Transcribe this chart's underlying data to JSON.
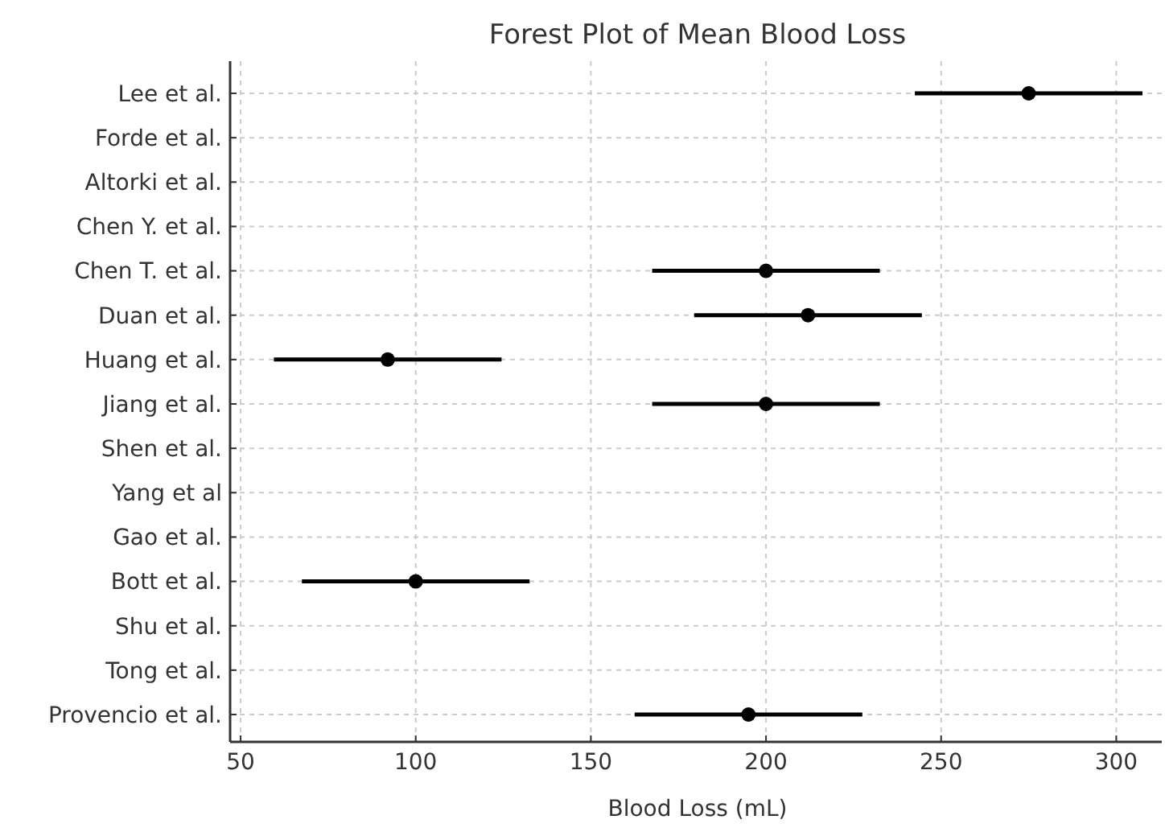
{
  "chart_data": {
    "type": "scatter",
    "orientation": "horizontal",
    "title": "Forest Plot of Mean Blood Loss",
    "xlabel": "Blood Loss (mL)",
    "categories": [
      "Lee et al.",
      "Forde et al.",
      "Altorki et al.",
      "Chen Y. et al.",
      "Chen T. et al.",
      "Duan et al.",
      "Huang et al.",
      "Jiang et al.",
      "Shen et al.",
      "Yang et al",
      "Gao et al.",
      "Bott et al.",
      "Shu et al.",
      "Tong et al.",
      "Provencio et al."
    ],
    "series": [
      {
        "color": "#000000",
        "values": [
          275,
          null,
          null,
          null,
          200,
          212,
          92,
          200,
          null,
          null,
          null,
          100,
          null,
          null,
          195
        ],
        "errors": [
          32.5,
          null,
          null,
          null,
          32.5,
          32.5,
          32.5,
          32.5,
          null,
          null,
          null,
          32.5,
          null,
          null,
          32.5
        ]
      }
    ],
    "xlim": [
      47,
      313
    ],
    "xticks": [
      50,
      100,
      150,
      200,
      250,
      300
    ],
    "grid": true,
    "marker": "circle"
  }
}
